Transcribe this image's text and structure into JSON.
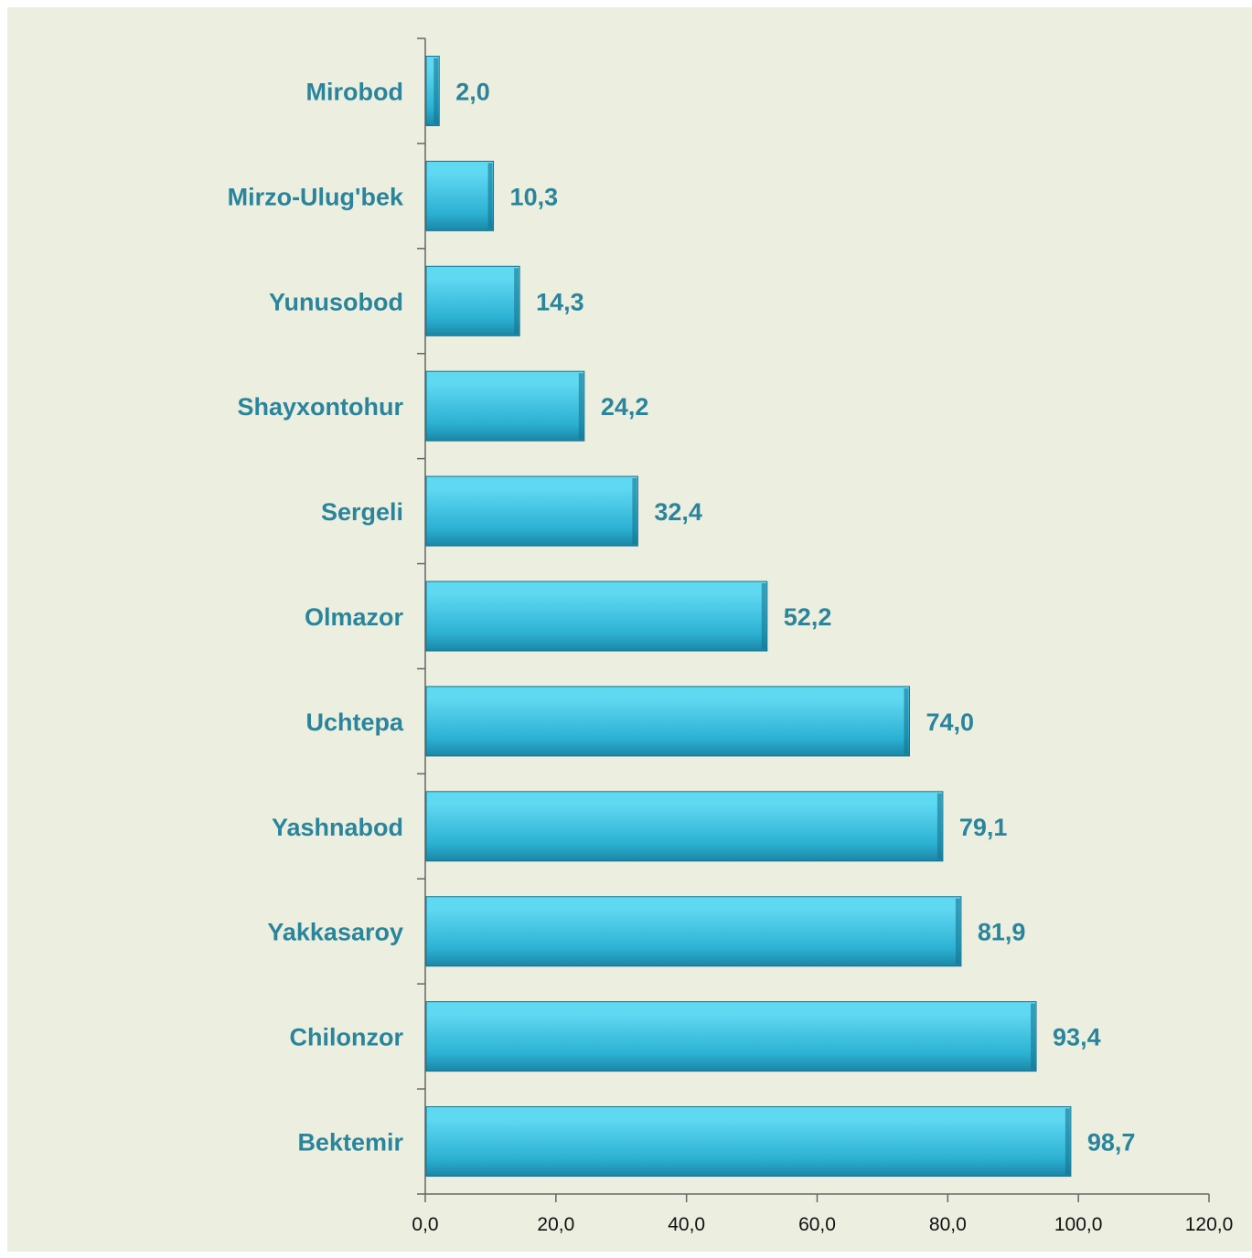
{
  "colors": {
    "background": "#ECEEDF",
    "bar_light": "#5FD8F2",
    "bar_mid": "#2CB1D3",
    "bar_dark": "#1A86A6",
    "label": "#2A859C",
    "axis": "#666666"
  },
  "chart_data": {
    "type": "bar",
    "orientation": "horizontal",
    "categories": [
      "Mirobod",
      "Mirzo-Ulug'bek",
      "Yunusobod",
      "Shayxontohur",
      "Sergeli",
      "Olmazor",
      "Uchtepa",
      "Yashnabod",
      "Yakkasaroy",
      "Chilonzor",
      "Bektemir"
    ],
    "values": [
      2.0,
      10.3,
      14.3,
      24.2,
      32.4,
      52.2,
      74.0,
      79.1,
      81.9,
      93.4,
      98.7
    ],
    "value_labels": [
      "2,0",
      "10,3",
      "14,3",
      "24,2",
      "32,4",
      "52,2",
      "74,0",
      "79,1",
      "81,9",
      "93,4",
      "98,7"
    ],
    "x_ticks": [
      0,
      20,
      40,
      60,
      80,
      100,
      120
    ],
    "x_tick_labels": [
      "0,0",
      "20,0",
      "40,0",
      "60,0",
      "80,0",
      "100,0",
      "120,0"
    ],
    "xlim": [
      0,
      120
    ],
    "title": "",
    "xlabel": "",
    "ylabel": "",
    "grid": false,
    "legend": "none"
  }
}
